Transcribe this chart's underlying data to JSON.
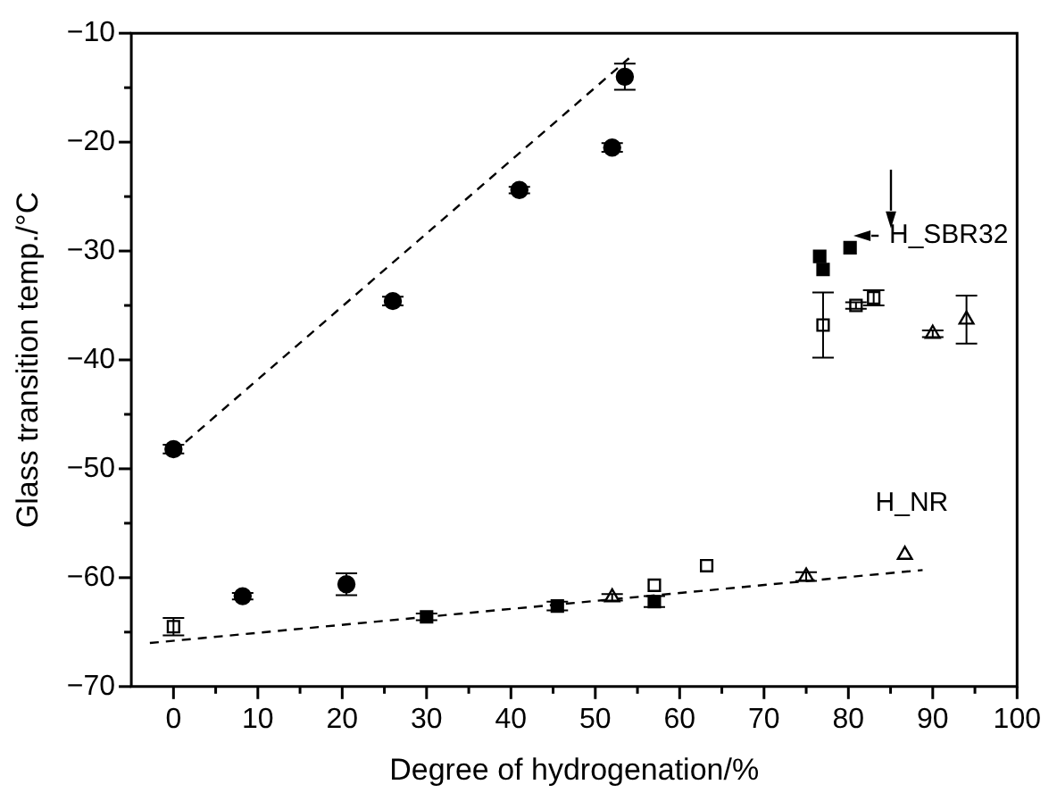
{
  "chart_data": {
    "type": "scatter",
    "xlabel": "Degree of hydrogenation/%",
    "ylabel": "Glass transition temp./°C",
    "xlim": [
      -5,
      100
    ],
    "ylim": [
      -70,
      -10
    ],
    "xticks": [
      0,
      {
        "value": 5,
        "label": null
      },
      10,
      {
        "value": 15,
        "label": null
      },
      20,
      {
        "value": 25,
        "label": null
      },
      30,
      {
        "value": 35,
        "label": null
      },
      40,
      {
        "value": 45,
        "label": null
      },
      50,
      {
        "value": 55,
        "label": null
      },
      60,
      {
        "value": 65,
        "label": null
      },
      70,
      {
        "value": 75,
        "label": null
      },
      80,
      {
        "value": 85,
        "label": null
      },
      90,
      {
        "value": 95,
        "label": null
      },
      100
    ],
    "yticks": [
      -70,
      {
        "value": -65,
        "label": null
      },
      -60,
      {
        "value": -55,
        "label": null
      },
      -50,
      {
        "value": -45,
        "label": null
      },
      -40,
      {
        "value": -35,
        "label": null
      },
      -30,
      {
        "value": -25,
        "label": null
      },
      -20,
      {
        "value": -15,
        "label": null
      },
      -10
    ],
    "grid": false,
    "legend": false,
    "annotations": [
      "H_SBR32",
      "H_NR"
    ],
    "series": [
      {
        "marker": "circle",
        "color": "#000000",
        "x": [
          0,
          8.2,
          20.5,
          26,
          41,
          52,
          53.5
        ],
        "values": [
          -48.2,
          -61.7,
          -60.6,
          -34.6,
          -24.4,
          -20.5,
          -14
        ],
        "errors": [
          0.4,
          0.3,
          1,
          0.4,
          0.3,
          0.4,
          1.2
        ]
      },
      {
        "marker": "square",
        "color": "#000000",
        "x": [
          30,
          45.5,
          57,
          76.6,
          77,
          80.2
        ],
        "values": [
          -63.6,
          -62.6,
          -62.2,
          -30.5,
          -31.7,
          -29.7
        ],
        "errors": [
          0.3,
          0.4,
          0.5,
          null,
          null,
          null
        ]
      },
      {
        "marker": "square",
        "color": "#ffffff",
        "x": [
          0,
          57,
          63.2,
          77,
          80.9,
          83
        ],
        "values": [
          -64.5,
          -60.7,
          -58.9,
          -36.8,
          -35,
          -34.3
        ],
        "errors": [
          0.8,
          null,
          null,
          3,
          0.3,
          0.7
        ]
      },
      {
        "marker": "triangle",
        "color": "#ffffff",
        "x": [
          52,
          75,
          86.7,
          90,
          94
        ],
        "values": [
          -61.8,
          -59.9,
          -57.9,
          -37.6,
          -36.3
        ],
        "errors": [
          0.3,
          0.4,
          null,
          0.3,
          2.2
        ]
      },
      {
        "type": "line",
        "marker": "none",
        "line_style": "dashed",
        "color": "#000000",
        "x": [
          0,
          54
        ],
        "values": [
          -48.5,
          -12.3
        ]
      },
      {
        "type": "line",
        "marker": "none",
        "line_style": "dashed",
        "color": "#000000",
        "x": [
          -2.8,
          88.8
        ],
        "values": [
          -66,
          -59.3
        ]
      }
    ]
  }
}
